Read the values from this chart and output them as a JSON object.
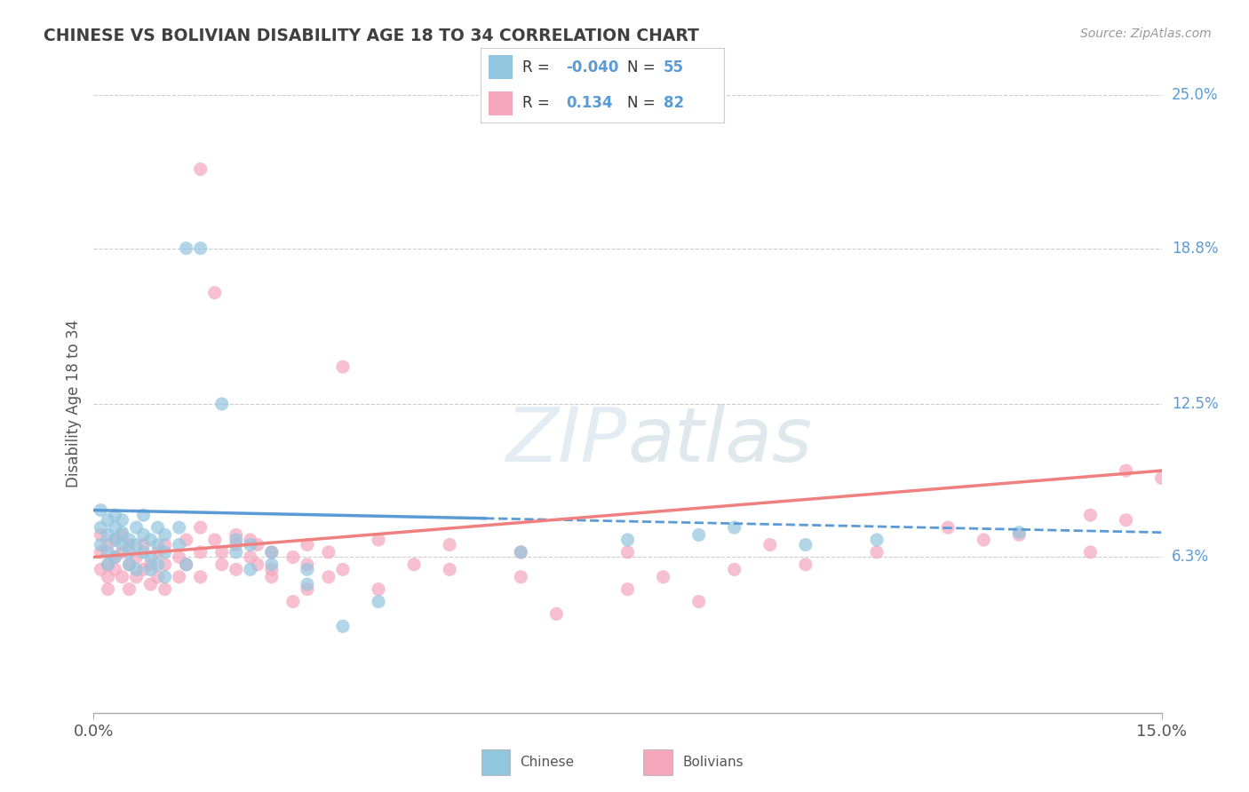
{
  "title": "CHINESE VS BOLIVIAN DISABILITY AGE 18 TO 34 CORRELATION CHART",
  "source_text": "Source: ZipAtlas.com",
  "ylabel": "Disability Age 18 to 34",
  "xlim": [
    0.0,
    0.15
  ],
  "ylim": [
    0.0,
    0.25
  ],
  "ytick_positions": [
    0.063,
    0.125,
    0.188,
    0.25
  ],
  "ytick_labels": [
    "6.3%",
    "12.5%",
    "18.8%",
    "25.0%"
  ],
  "legend_R_chinese": "-0.040",
  "legend_N_chinese": "55",
  "legend_R_bolivian": "0.134",
  "legend_N_bolivian": "82",
  "chinese_color": "#92c5de",
  "bolivian_color": "#f4a6bd",
  "trend_chinese_color": "#5b9bd5",
  "trend_bolivian_color": "#f08080",
  "background_color": "#ffffff",
  "grid_color": "#cccccc",
  "chinese_trend_start_y": 0.082,
  "chinese_trend_end_y": 0.073,
  "bolivian_trend_start_y": 0.063,
  "bolivian_trend_end_y": 0.098,
  "chinese_scatter": [
    [
      0.001,
      0.075
    ],
    [
      0.001,
      0.068
    ],
    [
      0.001,
      0.082
    ],
    [
      0.002,
      0.072
    ],
    [
      0.002,
      0.078
    ],
    [
      0.002,
      0.065
    ],
    [
      0.002,
      0.06
    ],
    [
      0.003,
      0.07
    ],
    [
      0.003,
      0.08
    ],
    [
      0.003,
      0.075
    ],
    [
      0.003,
      0.063
    ],
    [
      0.004,
      0.068
    ],
    [
      0.004,
      0.073
    ],
    [
      0.004,
      0.078
    ],
    [
      0.005,
      0.065
    ],
    [
      0.005,
      0.07
    ],
    [
      0.005,
      0.06
    ],
    [
      0.006,
      0.068
    ],
    [
      0.006,
      0.075
    ],
    [
      0.006,
      0.058
    ],
    [
      0.007,
      0.065
    ],
    [
      0.007,
      0.072
    ],
    [
      0.007,
      0.08
    ],
    [
      0.008,
      0.063
    ],
    [
      0.008,
      0.07
    ],
    [
      0.008,
      0.058
    ],
    [
      0.009,
      0.068
    ],
    [
      0.009,
      0.075
    ],
    [
      0.009,
      0.06
    ],
    [
      0.01,
      0.065
    ],
    [
      0.01,
      0.072
    ],
    [
      0.01,
      0.055
    ],
    [
      0.012,
      0.068
    ],
    [
      0.012,
      0.075
    ],
    [
      0.013,
      0.06
    ],
    [
      0.013,
      0.188
    ],
    [
      0.015,
      0.188
    ],
    [
      0.018,
      0.125
    ],
    [
      0.02,
      0.07
    ],
    [
      0.02,
      0.065
    ],
    [
      0.022,
      0.068
    ],
    [
      0.022,
      0.058
    ],
    [
      0.025,
      0.065
    ],
    [
      0.025,
      0.06
    ],
    [
      0.03,
      0.058
    ],
    [
      0.03,
      0.052
    ],
    [
      0.035,
      0.035
    ],
    [
      0.04,
      0.045
    ],
    [
      0.06,
      0.065
    ],
    [
      0.075,
      0.07
    ],
    [
      0.085,
      0.072
    ],
    [
      0.09,
      0.075
    ],
    [
      0.1,
      0.068
    ],
    [
      0.11,
      0.07
    ],
    [
      0.13,
      0.073
    ]
  ],
  "bolivian_scatter": [
    [
      0.001,
      0.065
    ],
    [
      0.001,
      0.058
    ],
    [
      0.001,
      0.072
    ],
    [
      0.002,
      0.06
    ],
    [
      0.002,
      0.068
    ],
    [
      0.002,
      0.055
    ],
    [
      0.002,
      0.05
    ],
    [
      0.003,
      0.063
    ],
    [
      0.003,
      0.07
    ],
    [
      0.003,
      0.058
    ],
    [
      0.004,
      0.065
    ],
    [
      0.004,
      0.055
    ],
    [
      0.004,
      0.072
    ],
    [
      0.005,
      0.06
    ],
    [
      0.005,
      0.068
    ],
    [
      0.005,
      0.05
    ],
    [
      0.006,
      0.063
    ],
    [
      0.006,
      0.055
    ],
    [
      0.007,
      0.058
    ],
    [
      0.007,
      0.068
    ],
    [
      0.008,
      0.06
    ],
    [
      0.008,
      0.052
    ],
    [
      0.009,
      0.065
    ],
    [
      0.009,
      0.055
    ],
    [
      0.01,
      0.06
    ],
    [
      0.01,
      0.068
    ],
    [
      0.01,
      0.05
    ],
    [
      0.012,
      0.063
    ],
    [
      0.012,
      0.055
    ],
    [
      0.013,
      0.07
    ],
    [
      0.013,
      0.06
    ],
    [
      0.015,
      0.075
    ],
    [
      0.015,
      0.065
    ],
    [
      0.015,
      0.055
    ],
    [
      0.015,
      0.22
    ],
    [
      0.017,
      0.17
    ],
    [
      0.017,
      0.07
    ],
    [
      0.018,
      0.065
    ],
    [
      0.018,
      0.06
    ],
    [
      0.02,
      0.068
    ],
    [
      0.02,
      0.058
    ],
    [
      0.02,
      0.072
    ],
    [
      0.022,
      0.063
    ],
    [
      0.022,
      0.07
    ],
    [
      0.023,
      0.068
    ],
    [
      0.023,
      0.06
    ],
    [
      0.025,
      0.065
    ],
    [
      0.025,
      0.055
    ],
    [
      0.025,
      0.058
    ],
    [
      0.028,
      0.063
    ],
    [
      0.028,
      0.045
    ],
    [
      0.03,
      0.06
    ],
    [
      0.03,
      0.068
    ],
    [
      0.03,
      0.05
    ],
    [
      0.033,
      0.055
    ],
    [
      0.033,
      0.065
    ],
    [
      0.035,
      0.058
    ],
    [
      0.035,
      0.14
    ],
    [
      0.04,
      0.07
    ],
    [
      0.04,
      0.05
    ],
    [
      0.045,
      0.06
    ],
    [
      0.05,
      0.068
    ],
    [
      0.05,
      0.058
    ],
    [
      0.06,
      0.065
    ],
    [
      0.06,
      0.055
    ],
    [
      0.065,
      0.04
    ],
    [
      0.075,
      0.05
    ],
    [
      0.075,
      0.065
    ],
    [
      0.08,
      0.055
    ],
    [
      0.085,
      0.045
    ],
    [
      0.09,
      0.058
    ],
    [
      0.095,
      0.068
    ],
    [
      0.1,
      0.06
    ],
    [
      0.11,
      0.065
    ],
    [
      0.12,
      0.075
    ],
    [
      0.125,
      0.07
    ],
    [
      0.13,
      0.072
    ],
    [
      0.14,
      0.08
    ],
    [
      0.145,
      0.078
    ],
    [
      0.15,
      0.095
    ],
    [
      0.145,
      0.098
    ],
    [
      0.14,
      0.065
    ]
  ]
}
